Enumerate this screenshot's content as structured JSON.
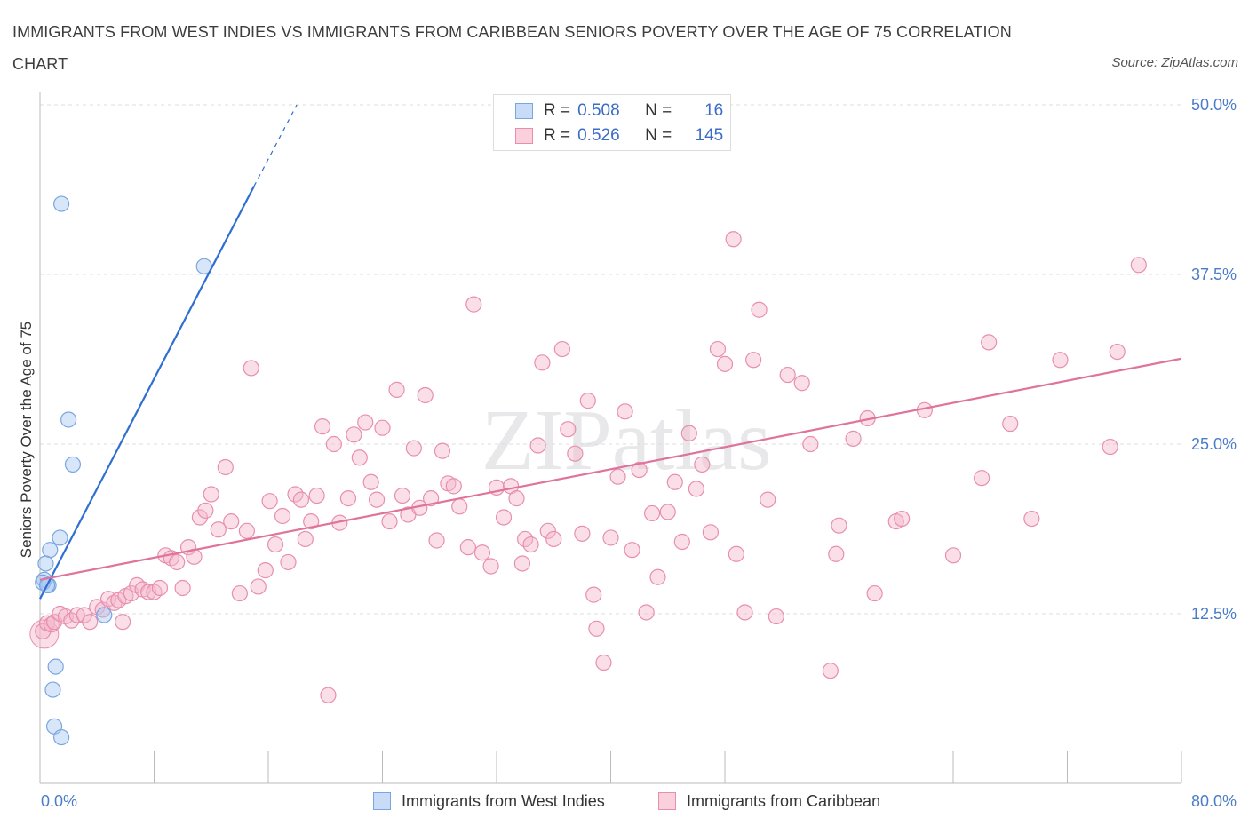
{
  "title": "IMMIGRANTS FROM WEST INDIES VS IMMIGRANTS FROM CARIBBEAN SENIORS POVERTY OVER THE AGE OF 75 CORRELATION CHART",
  "source": "Source: ZipAtlas.com",
  "watermark": "ZIPatlas",
  "colors": {
    "blue_fill": "#a9c8f3",
    "blue_stroke": "#7aa6e0",
    "blue_line": "#2f6fd1",
    "pink_fill": "#f4b8cb",
    "pink_stroke": "#e88fac",
    "pink_line": "#e0739b",
    "axis_text": "#4a7cc9",
    "grid": "#dddddd"
  },
  "legend_top": {
    "r_label": "R =",
    "n_label": "N =",
    "rows": [
      {
        "series": "Immigrants from West Indies",
        "r": "0.508",
        "n": "16"
      },
      {
        "series": "Immigrants from Caribbean",
        "r": "0.526",
        "n": "145"
      }
    ]
  },
  "chart_data": {
    "type": "scatter",
    "xlabel": "",
    "ylabel": "Seniors Poverty Over the Age of 75",
    "xlim": [
      0,
      80
    ],
    "ylim": [
      0,
      50
    ],
    "x_tick_labels": [
      "0.0%",
      "80.0%"
    ],
    "y_ticks": [
      12.5,
      25.0,
      37.5,
      50.0
    ],
    "y_tick_labels": [
      "12.5%",
      "25.0%",
      "37.5%",
      "50.0%"
    ],
    "grid": true,
    "legend": [
      "Immigrants from West Indies",
      "Immigrants from Caribbean"
    ],
    "series": [
      {
        "name": "Immigrants from West Indies",
        "color": "blue",
        "trend": {
          "x0": 0,
          "y0": 13.6,
          "x1": 15.0,
          "y1": 44.0,
          "dash_to_x": 18.0,
          "dash_to_y": 50.0
        },
        "points": [
          [
            1.5,
            42.7
          ],
          [
            11.5,
            38.1
          ],
          [
            2.0,
            26.8
          ],
          [
            2.3,
            23.5
          ],
          [
            1.4,
            18.1
          ],
          [
            0.7,
            17.2
          ],
          [
            0.4,
            16.2
          ],
          [
            0.3,
            15.0
          ],
          [
            0.6,
            14.6
          ],
          [
            0.2,
            14.8
          ],
          [
            4.5,
            12.4
          ],
          [
            1.1,
            8.6
          ],
          [
            0.9,
            6.9
          ],
          [
            1.0,
            4.2
          ],
          [
            1.5,
            3.4
          ],
          [
            0.5,
            14.6
          ]
        ]
      },
      {
        "name": "Immigrants from Caribbean",
        "color": "pink",
        "trend": {
          "x0": 0,
          "y0": 15.0,
          "x1": 80,
          "y1": 31.3
        },
        "points": [
          [
            0.2,
            11.2
          ],
          [
            0.5,
            11.8
          ],
          [
            0.8,
            11.7
          ],
          [
            1.0,
            11.9
          ],
          [
            1.4,
            12.5
          ],
          [
            1.8,
            12.3
          ],
          [
            2.2,
            12.0
          ],
          [
            2.6,
            12.4
          ],
          [
            3.1,
            12.4
          ],
          [
            3.5,
            11.9
          ],
          [
            4.0,
            13.0
          ],
          [
            4.4,
            12.8
          ],
          [
            4.8,
            13.6
          ],
          [
            5.2,
            13.3
          ],
          [
            5.5,
            13.5
          ],
          [
            5.8,
            11.9
          ],
          [
            6.0,
            13.8
          ],
          [
            6.4,
            14.0
          ],
          [
            6.8,
            14.6
          ],
          [
            7.2,
            14.3
          ],
          [
            7.6,
            14.1
          ],
          [
            8.0,
            14.1
          ],
          [
            8.4,
            14.4
          ],
          [
            8.8,
            16.8
          ],
          [
            9.2,
            16.6
          ],
          [
            9.6,
            16.3
          ],
          [
            10.0,
            14.4
          ],
          [
            10.4,
            17.4
          ],
          [
            10.8,
            16.7
          ],
          [
            11.2,
            19.6
          ],
          [
            11.6,
            20.1
          ],
          [
            12.0,
            21.3
          ],
          [
            12.5,
            18.7
          ],
          [
            13.0,
            23.3
          ],
          [
            13.4,
            19.3
          ],
          [
            14.0,
            14.0
          ],
          [
            14.5,
            18.6
          ],
          [
            14.8,
            30.6
          ],
          [
            15.3,
            14.5
          ],
          [
            15.8,
            15.7
          ],
          [
            16.1,
            20.8
          ],
          [
            16.5,
            17.6
          ],
          [
            17.0,
            19.7
          ],
          [
            17.4,
            16.3
          ],
          [
            17.9,
            21.3
          ],
          [
            18.3,
            20.9
          ],
          [
            18.6,
            18.0
          ],
          [
            19.0,
            19.3
          ],
          [
            19.4,
            21.2
          ],
          [
            19.8,
            26.3
          ],
          [
            20.2,
            6.5
          ],
          [
            20.6,
            25.0
          ],
          [
            21.0,
            19.2
          ],
          [
            21.6,
            21.0
          ],
          [
            22.0,
            25.7
          ],
          [
            22.4,
            24.0
          ],
          [
            22.8,
            26.6
          ],
          [
            23.2,
            22.2
          ],
          [
            23.6,
            20.9
          ],
          [
            24.0,
            26.2
          ],
          [
            24.5,
            19.3
          ],
          [
            25.0,
            29.0
          ],
          [
            25.4,
            21.2
          ],
          [
            25.8,
            19.8
          ],
          [
            26.2,
            24.7
          ],
          [
            26.6,
            20.3
          ],
          [
            27.0,
            28.6
          ],
          [
            27.4,
            21.0
          ],
          [
            27.8,
            17.9
          ],
          [
            28.2,
            24.5
          ],
          [
            28.6,
            22.1
          ],
          [
            29.0,
            21.9
          ],
          [
            29.4,
            20.4
          ],
          [
            30.0,
            17.4
          ],
          [
            30.4,
            35.3
          ],
          [
            31.0,
            17.0
          ],
          [
            31.6,
            16.0
          ],
          [
            32.0,
            21.8
          ],
          [
            32.5,
            19.6
          ],
          [
            33.0,
            21.9
          ],
          [
            33.4,
            21.0
          ],
          [
            33.8,
            16.2
          ],
          [
            34.0,
            18.0
          ],
          [
            34.4,
            17.6
          ],
          [
            34.9,
            24.9
          ],
          [
            35.2,
            31.0
          ],
          [
            35.6,
            18.6
          ],
          [
            36.0,
            18.0
          ],
          [
            36.6,
            32.0
          ],
          [
            37.0,
            26.1
          ],
          [
            37.5,
            24.3
          ],
          [
            38.0,
            18.4
          ],
          [
            38.4,
            28.2
          ],
          [
            38.8,
            13.9
          ],
          [
            39.0,
            11.4
          ],
          [
            39.5,
            8.9
          ],
          [
            40.0,
            18.1
          ],
          [
            40.5,
            22.6
          ],
          [
            41.0,
            27.4
          ],
          [
            41.5,
            17.2
          ],
          [
            42.0,
            23.1
          ],
          [
            42.5,
            12.6
          ],
          [
            42.9,
            19.9
          ],
          [
            43.3,
            15.2
          ],
          [
            44.0,
            20.0
          ],
          [
            44.5,
            22.2
          ],
          [
            45.0,
            17.8
          ],
          [
            45.5,
            25.8
          ],
          [
            46.0,
            21.7
          ],
          [
            46.4,
            23.5
          ],
          [
            47.0,
            18.5
          ],
          [
            47.5,
            32.0
          ],
          [
            48.0,
            30.9
          ],
          [
            48.6,
            40.1
          ],
          [
            48.8,
            16.9
          ],
          [
            49.4,
            12.6
          ],
          [
            50.0,
            31.2
          ],
          [
            50.4,
            34.9
          ],
          [
            51.0,
            20.9
          ],
          [
            51.6,
            12.3
          ],
          [
            52.4,
            30.1
          ],
          [
            53.4,
            29.5
          ],
          [
            54.0,
            25.0
          ],
          [
            55.4,
            8.3
          ],
          [
            55.8,
            16.9
          ],
          [
            56.0,
            19.0
          ],
          [
            57.0,
            25.4
          ],
          [
            58.0,
            26.9
          ],
          [
            58.5,
            14.0
          ],
          [
            60.0,
            19.3
          ],
          [
            60.4,
            19.5
          ],
          [
            62.0,
            27.5
          ],
          [
            64.0,
            16.8
          ],
          [
            66.0,
            22.5
          ],
          [
            66.5,
            32.5
          ],
          [
            68.0,
            26.5
          ],
          [
            69.5,
            19.5
          ],
          [
            71.5,
            31.2
          ],
          [
            75.0,
            24.8
          ],
          [
            75.5,
            31.8
          ],
          [
            77.0,
            38.2
          ]
        ]
      }
    ]
  },
  "legend_bottom": [
    "Immigrants from West Indies",
    "Immigrants from Caribbean"
  ]
}
